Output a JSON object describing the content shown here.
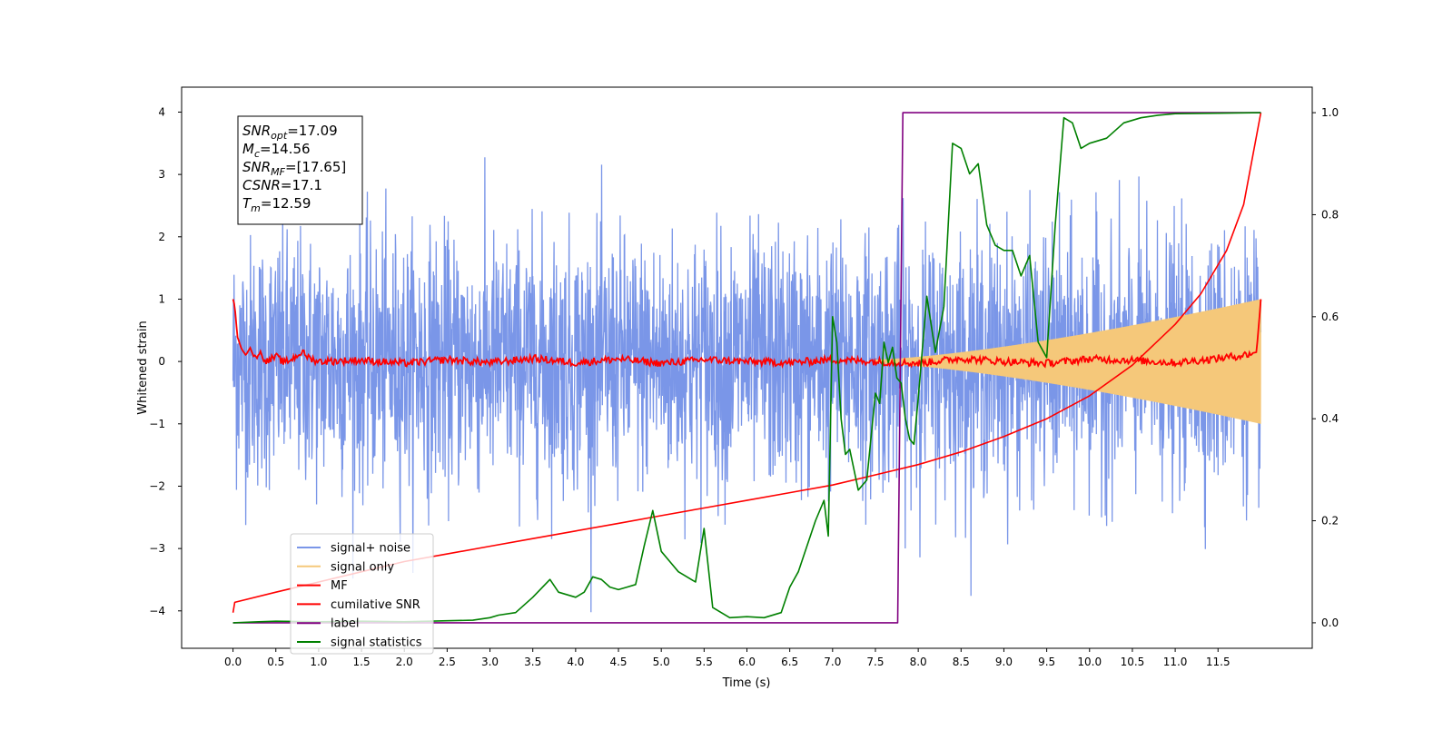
{
  "chart_data": {
    "type": "line",
    "title": "",
    "xlabel": "Time (s)",
    "ylabel": "Whitened strain",
    "ylabel_right": "",
    "xlim": [
      -0.6,
      12.6
    ],
    "ylim": [
      -4.6,
      4.4
    ],
    "ylim_right": [
      -0.05,
      1.05
    ],
    "x_ticks": [
      0.0,
      0.5,
      1.0,
      1.5,
      2.0,
      2.5,
      3.0,
      3.5,
      4.0,
      4.5,
      5.0,
      5.5,
      6.0,
      6.5,
      7.0,
      7.5,
      8.0,
      8.5,
      9.0,
      9.5,
      10.0,
      10.5,
      11.0,
      11.5
    ],
    "x_tick_labels": [
      "0.0",
      "0.5",
      "1.0",
      "1.5",
      "2.0",
      "2.5",
      "3.0",
      "3.5",
      "4.0",
      "4.5",
      "5.0",
      "5.5",
      "6.0",
      "6.5",
      "7.0",
      "7.5",
      "8.0",
      "8.5",
      "9.0",
      "9.5",
      "10.0",
      "10.5",
      "11.0",
      "11.5"
    ],
    "y_ticks": [
      -4,
      -3,
      -2,
      -1,
      0,
      1,
      2,
      3,
      4
    ],
    "y_tick_labels": [
      "−4",
      "−3",
      "−2",
      "−1",
      "0",
      "1",
      "2",
      "3",
      "4"
    ],
    "y_right_ticks": [
      0.0,
      0.2,
      0.4,
      0.6,
      0.8,
      1.0
    ],
    "y_right_tick_labels": [
      "0.0",
      "0.2",
      "0.4",
      "0.6",
      "0.8",
      "1.0"
    ],
    "grid": false,
    "legend_position": "lower-left",
    "annotation_box": {
      "position": "upper-left",
      "lines": [
        {
          "base": "SNR",
          "sub": "opt",
          "value": "=17.09"
        },
        {
          "base": "M",
          "sub": "c",
          "value": "=14.56"
        },
        {
          "base": "SNR",
          "sub": "MF",
          "value": "=[17.65]"
        },
        {
          "base": "CSNR",
          "sub": "",
          "value": "=17.1"
        },
        {
          "base": "T",
          "sub": "m",
          "value": "=12.59"
        }
      ]
    },
    "series": [
      {
        "name": "signal+ noise",
        "axis": "left",
        "color": "#7a96e8",
        "kind": "noise-band",
        "duration": 12.0,
        "mean": 0.0,
        "std": 1.0,
        "range": [
          -4.2,
          4.0
        ],
        "note_points": 3000
      },
      {
        "name": "signal only",
        "axis": "left",
        "color": "#f5c87a",
        "kind": "chirp",
        "duration": 12.0,
        "amplitude_start": 0.03,
        "amplitude_end": 1.0,
        "visible_tail_from": 7.5
      },
      {
        "name": "MF",
        "axis": "left",
        "color": "#ff0000",
        "x": [
          0.0,
          0.02,
          0.05,
          0.1,
          0.15,
          0.2,
          0.25,
          0.3,
          0.4,
          0.5,
          0.6,
          0.7,
          0.8,
          0.9,
          1.0,
          1.5,
          2.0,
          2.5,
          3.0,
          3.5,
          4.0,
          4.5,
          5.0,
          5.5,
          6.0,
          6.5,
          7.0,
          7.5,
          8.0,
          8.5,
          9.0,
          9.5,
          10.0,
          10.5,
          11.0,
          11.5,
          11.8,
          11.95,
          12.0
        ],
        "y": [
          1.0,
          0.9,
          0.4,
          0.2,
          0.1,
          0.22,
          0.05,
          0.15,
          0.0,
          0.08,
          -0.02,
          0.05,
          0.15,
          0.05,
          0.0,
          0.02,
          -0.03,
          0.03,
          -0.02,
          0.05,
          -0.02,
          0.04,
          -0.03,
          0.03,
          0.0,
          -0.02,
          0.03,
          0.0,
          -0.03,
          0.05,
          0.0,
          -0.03,
          0.04,
          0.02,
          -0.02,
          0.05,
          0.1,
          0.15,
          1.0
        ]
      },
      {
        "name": "cumilative SNR",
        "axis": "right",
        "color": "#ff0000",
        "x": [
          0.0,
          0.02,
          0.5,
          1.0,
          1.5,
          2.0,
          2.5,
          3.0,
          3.5,
          4.0,
          4.5,
          5.0,
          5.5,
          6.0,
          6.5,
          7.0,
          7.5,
          8.0,
          8.5,
          9.0,
          9.5,
          10.0,
          10.5,
          11.0,
          11.3,
          11.6,
          11.8,
          12.0
        ],
        "y": [
          0.02,
          0.04,
          0.06,
          0.08,
          0.1,
          0.12,
          0.135,
          0.15,
          0.165,
          0.18,
          0.195,
          0.21,
          0.225,
          0.24,
          0.255,
          0.27,
          0.29,
          0.31,
          0.335,
          0.365,
          0.4,
          0.445,
          0.505,
          0.585,
          0.645,
          0.73,
          0.82,
          1.0
        ]
      },
      {
        "name": "label",
        "axis": "right",
        "color": "#800080",
        "x": [
          0.0,
          7.76,
          7.82,
          12.0
        ],
        "y": [
          0.0,
          0.0,
          1.0,
          1.0
        ]
      },
      {
        "name": "signal statistics",
        "axis": "right",
        "color": "#008000",
        "x": [
          0.0,
          0.3,
          0.5,
          1.0,
          1.5,
          2.0,
          2.5,
          2.8,
          3.0,
          3.1,
          3.3,
          3.5,
          3.7,
          3.8,
          4.0,
          4.1,
          4.2,
          4.3,
          4.4,
          4.5,
          4.6,
          4.7,
          4.8,
          4.9,
          5.0,
          5.1,
          5.2,
          5.4,
          5.5,
          5.6,
          5.8,
          6.0,
          6.2,
          6.4,
          6.5,
          6.6,
          6.8,
          6.9,
          6.95,
          7.0,
          7.05,
          7.1,
          7.15,
          7.2,
          7.3,
          7.4,
          7.5,
          7.55,
          7.6,
          7.65,
          7.7,
          7.75,
          7.8,
          7.85,
          7.9,
          7.95,
          8.0,
          8.1,
          8.2,
          8.3,
          8.4,
          8.5,
          8.6,
          8.7,
          8.8,
          8.9,
          9.0,
          9.1,
          9.2,
          9.3,
          9.4,
          9.5,
          9.6,
          9.7,
          9.8,
          9.9,
          10.0,
          10.2,
          10.4,
          10.6,
          10.8,
          11.0,
          11.5,
          12.0
        ],
        "y": [
          0.0,
          0.002,
          0.003,
          0.002,
          0.003,
          0.002,
          0.004,
          0.005,
          0.01,
          0.015,
          0.02,
          0.05,
          0.085,
          0.06,
          0.05,
          0.06,
          0.09,
          0.085,
          0.07,
          0.065,
          0.07,
          0.075,
          0.15,
          0.22,
          0.14,
          0.12,
          0.1,
          0.08,
          0.185,
          0.03,
          0.01,
          0.012,
          0.01,
          0.02,
          0.07,
          0.1,
          0.2,
          0.24,
          0.17,
          0.6,
          0.55,
          0.4,
          0.33,
          0.34,
          0.26,
          0.28,
          0.45,
          0.43,
          0.55,
          0.51,
          0.54,
          0.48,
          0.47,
          0.4,
          0.36,
          0.35,
          0.44,
          0.64,
          0.53,
          0.62,
          0.94,
          0.93,
          0.88,
          0.9,
          0.78,
          0.74,
          0.73,
          0.73,
          0.68,
          0.72,
          0.55,
          0.52,
          0.78,
          0.99,
          0.98,
          0.93,
          0.94,
          0.95,
          0.98,
          0.99,
          0.995,
          0.998,
          0.999,
          1.0
        ]
      }
    ]
  }
}
